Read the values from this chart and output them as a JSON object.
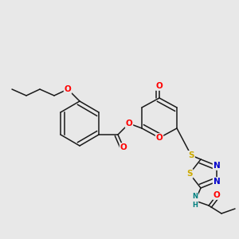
{
  "bg": "#e8e8e8",
  "bond_color": "#1a1a1a",
  "atom_colors": {
    "O": "#ff0000",
    "N": "#0000cc",
    "S": "#ccaa00",
    "NH": "#008080"
  },
  "lw": 1.1,
  "figsize": [
    3.0,
    3.0
  ],
  "dpi": 100,
  "scale": 300
}
